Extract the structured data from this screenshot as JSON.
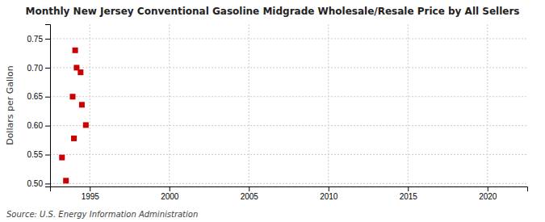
{
  "chart_data": {
    "type": "scatter",
    "title": "Monthly New Jersey Conventional Gasoline Midgrade Wholesale/Resale Price by All Sellers",
    "ylabel": "Dollars per Gallon",
    "annotations": [
      "Source: U.S. Energy Information Administration"
    ],
    "x": [
      1993.25,
      1993.5,
      1993.92,
      1994.0,
      1994.08,
      1994.17,
      1994.42,
      1994.5,
      1994.75
    ],
    "values": [
      0.545,
      0.505,
      0.65,
      0.578,
      0.73,
      0.7,
      0.692,
      0.636,
      0.601
    ],
    "color": "#cc0000",
    "marker": "square",
    "xlim": [
      1992.5,
      2022.5
    ],
    "ylim": [
      0.495,
      0.775
    ],
    "xticks": [
      1995,
      2000,
      2005,
      2010,
      2015,
      2020
    ],
    "yticks": [
      {
        "value": 0.5,
        "label": "0.50"
      },
      0.55,
      {
        "value": 0.6,
        "label": "0.60"
      },
      0.65,
      {
        "value": 0.7,
        "label": "0.70"
      },
      0.75
    ],
    "grid": true
  }
}
